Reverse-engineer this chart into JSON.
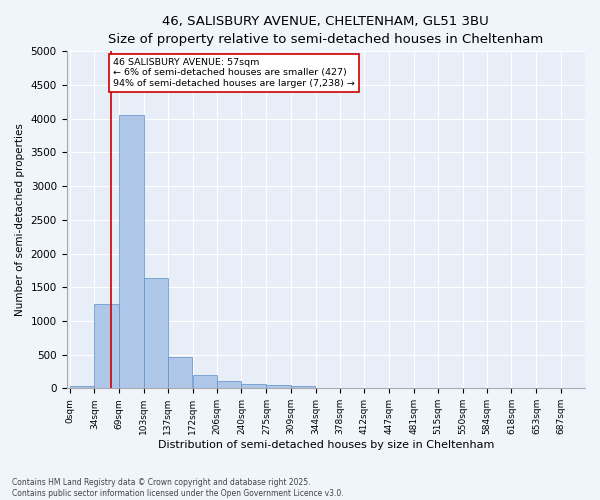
{
  "title": "46, SALISBURY AVENUE, CHELTENHAM, GL51 3BU",
  "subtitle": "Size of property relative to semi-detached houses in Cheltenham",
  "xlabel": "Distribution of semi-detached houses by size in Cheltenham",
  "ylabel": "Number of semi-detached properties",
  "bin_edges": [
    0,
    34,
    69,
    103,
    137,
    172,
    206,
    240,
    275,
    309,
    344,
    378,
    412,
    447,
    481,
    515,
    550,
    584,
    618,
    653,
    687,
    721
  ],
  "bin_labels": [
    "0sqm",
    "34sqm",
    "69sqm",
    "103sqm",
    "137sqm",
    "172sqm",
    "206sqm",
    "240sqm",
    "275sqm",
    "309sqm",
    "344sqm",
    "378sqm",
    "412sqm",
    "447sqm",
    "481sqm",
    "515sqm",
    "550sqm",
    "584sqm",
    "618sqm",
    "653sqm",
    "687sqm"
  ],
  "bar_heights": [
    30,
    1250,
    4050,
    1640,
    470,
    200,
    110,
    65,
    50,
    30,
    10,
    5,
    2,
    1,
    0,
    0,
    0,
    0,
    0,
    0,
    0
  ],
  "bar_color": "#aec6e8",
  "bar_edge_color": "#5b8fc9",
  "background_color": "#e8eef8",
  "fig_background_color": "#f0f4fb",
  "grid_color": "#ffffff",
  "property_line_x": 57,
  "annotation_title": "46 SALISBURY AVENUE: 57sqm",
  "annotation_line1": "← 6% of semi-detached houses are smaller (427)",
  "annotation_line2": "94% of semi-detached houses are larger (7,238) →",
  "annotation_box_color": "#ffffff",
  "annotation_border_color": "#cc0000",
  "vline_color": "#cc0000",
  "ylim": [
    0,
    5000
  ],
  "yticks": [
    0,
    500,
    1000,
    1500,
    2000,
    2500,
    3000,
    3500,
    4000,
    4500,
    5000
  ],
  "footer_line1": "Contains HM Land Registry data © Crown copyright and database right 2025.",
  "footer_line2": "Contains public sector information licensed under the Open Government Licence v3.0.",
  "title_fontsize": 9.5,
  "tick_fontsize": 6.5,
  "xlabel_fontsize": 8,
  "ylabel_fontsize": 7.5,
  "annotation_fontsize": 6.8,
  "footer_fontsize": 5.5
}
